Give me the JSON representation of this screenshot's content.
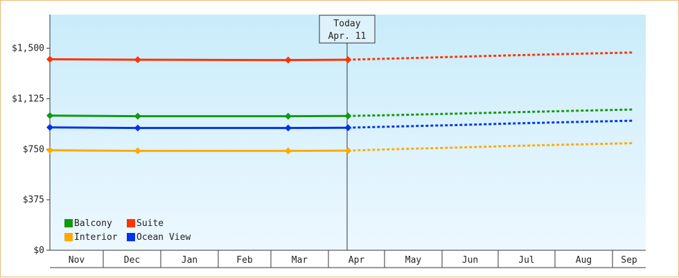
{
  "chart_data": {
    "type": "line",
    "title": "",
    "xlabel": "",
    "ylabel": "",
    "ylim": [
      0,
      1750
    ],
    "y_ticks": [
      {
        "value": 0,
        "label": "$0"
      },
      {
        "value": 375,
        "label": "$375"
      },
      {
        "value": 750,
        "label": "$750"
      },
      {
        "value": 1125,
        "label": "$1,125"
      },
      {
        "value": 1500,
        "label": "$1,500"
      }
    ],
    "months": [
      "Nov",
      "Dec",
      "Jan",
      "Feb",
      "Mar",
      "Apr",
      "May",
      "Jun",
      "Jul",
      "Aug",
      "Sep"
    ],
    "today": {
      "line1": "Today",
      "line2": "Apr. 11"
    },
    "legend": {
      "placement": "bottom-left"
    },
    "series": [
      {
        "name": "Balcony",
        "color": "#119911",
        "history": [
          [
            0,
            1000
          ],
          [
            1.6,
            995
          ],
          [
            4.3,
            995
          ],
          [
            5.35,
            997
          ]
        ],
        "forecast": [
          [
            5.35,
            997
          ],
          [
            6.3,
            1005
          ],
          [
            7.3,
            1015
          ],
          [
            8.3,
            1025
          ],
          [
            9.3,
            1035
          ],
          [
            10.6,
            1045
          ]
        ]
      },
      {
        "name": "Suite",
        "color": "#ff3300",
        "history": [
          [
            0,
            1418
          ],
          [
            1.6,
            1415
          ],
          [
            4.3,
            1412
          ],
          [
            5.35,
            1415
          ]
        ],
        "forecast": [
          [
            5.35,
            1415
          ],
          [
            6.3,
            1425
          ],
          [
            7.3,
            1437
          ],
          [
            8.3,
            1448
          ],
          [
            9.3,
            1458
          ],
          [
            10.6,
            1468
          ]
        ]
      },
      {
        "name": "Interior",
        "color": "#ffaa00",
        "history": [
          [
            0,
            743
          ],
          [
            1.6,
            738
          ],
          [
            4.3,
            738
          ],
          [
            5.35,
            740
          ]
        ],
        "forecast": [
          [
            5.35,
            740
          ],
          [
            6.3,
            752
          ],
          [
            7.3,
            763
          ],
          [
            8.3,
            775
          ],
          [
            9.3,
            785
          ],
          [
            10.6,
            795
          ]
        ]
      },
      {
        "name": "Ocean View",
        "color": "#0033ee",
        "history": [
          [
            0,
            912
          ],
          [
            1.6,
            908
          ],
          [
            4.3,
            908
          ],
          [
            5.35,
            910
          ]
        ],
        "forecast": [
          [
            5.35,
            910
          ],
          [
            6.3,
            920
          ],
          [
            7.3,
            930
          ],
          [
            8.3,
            942
          ],
          [
            9.3,
            952
          ],
          [
            10.6,
            962
          ]
        ]
      }
    ]
  }
}
